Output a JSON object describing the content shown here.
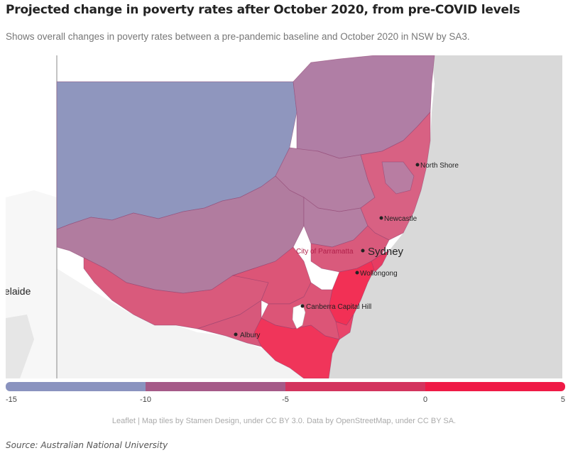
{
  "title": "Projected change in poverty rates after October 2020, from pre-COVID levels",
  "subtitle": "Shows overall changes in poverty rates between a pre-pandemic baseline and October 2020 in NSW by SA3.",
  "map": {
    "cities": [
      {
        "key": "north-shore",
        "name": "North Shore"
      },
      {
        "key": "newcastle",
        "name": "Newcastle"
      },
      {
        "key": "sydney",
        "name": "Sydney"
      },
      {
        "key": "city-of-parramatta",
        "name": "City of Parramatta"
      },
      {
        "key": "wollongong",
        "name": "Wollongong"
      },
      {
        "key": "canberra",
        "name": "Canberra Capital Hill"
      },
      {
        "key": "albury",
        "name": "Albury"
      },
      {
        "key": "adelaide",
        "name": "elaide"
      }
    ],
    "colors": {
      "ocean": "#d9d9d9",
      "land": "#ffffff",
      "bin_-15_-10": "#8c93bd",
      "bin_-10_-5": "#b47fa3",
      "bin_-5_0": "#dc5577",
      "bin_0_5": "#f23055"
    }
  },
  "legend": {
    "colors": [
      "#8a93bf",
      "#a55a88",
      "#d3345e",
      "#ef1a46"
    ],
    "ticks": [
      "-15",
      "-10",
      "-5",
      "0",
      "5"
    ],
    "scale_min": -15,
    "scale_max": 5
  },
  "attribution": "Leaflet | Map tiles by Stamen Design, under CC BY 3.0. Data by OpenStreetMap, under CC BY SA.",
  "source": "Source: Australian National University"
}
